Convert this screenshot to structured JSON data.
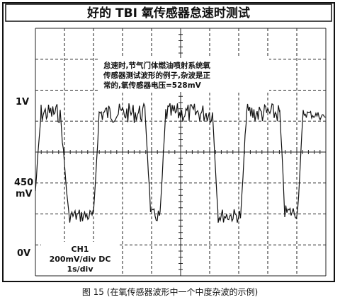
{
  "title": "好的 TBI 氧传感器怠速时测试",
  "annotation": [
    "怠速时,节气门体燃油喷射系统氧",
    "传感器测试波形的例子,杂波是正",
    "常的,氧传感器电压=528mV"
  ],
  "axis_labels": {
    "top": "1V",
    "middle": [
      "450",
      "mV"
    ],
    "bottom": "0V"
  },
  "settings": [
    "CH1",
    "200mV/div DC",
    "1s/div"
  ],
  "caption": "图 15 (在氧传感器波形中一个中度杂波的示例)"
}
